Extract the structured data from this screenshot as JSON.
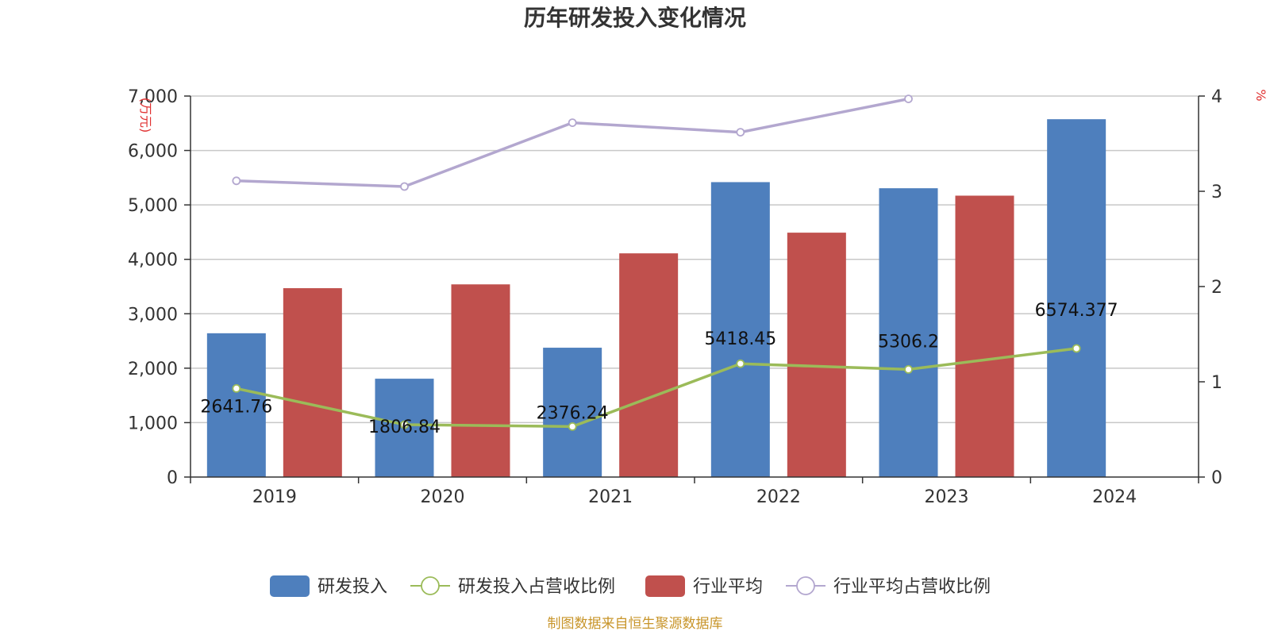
{
  "chart_data": {
    "type": "bar",
    "title": "历年研发投入变化情况",
    "categories": [
      "2019",
      "2020",
      "2021",
      "2022",
      "2023",
      "2024"
    ],
    "left_axis": {
      "unit": "(万元)",
      "ylim": [
        0,
        7000
      ],
      "ticks": [
        "0",
        "1,000",
        "2,000",
        "3,000",
        "4,000",
        "5,000",
        "6,000",
        "7,000"
      ]
    },
    "right_axis": {
      "unit": "%",
      "ylim": [
        0,
        4
      ],
      "ticks": [
        "0",
        "1",
        "2",
        "3",
        "4"
      ]
    },
    "series": [
      {
        "name": "研发投入",
        "type": "bar",
        "axis": "left",
        "color": "#4e7fbd",
        "values": [
          2641.76,
          1806.84,
          2376.24,
          5418.45,
          5306.2,
          6574.377
        ],
        "labels": [
          "2641.76",
          "1806.84",
          "2376.24",
          "5418.45",
          "5306.2",
          "6574.377"
        ]
      },
      {
        "name": "研发投入占营收比例",
        "type": "line",
        "axis": "right",
        "color": "#9bbb59",
        "values": [
          0.93,
          0.55,
          0.53,
          1.19,
          1.13,
          1.35
        ]
      },
      {
        "name": "行业平均",
        "type": "bar",
        "axis": "left",
        "color": "#c0504d",
        "values": [
          3470,
          3540,
          4110,
          4490,
          5170,
          null
        ]
      },
      {
        "name": "行业平均占营收比例",
        "type": "line",
        "axis": "right",
        "color": "#b3a7cf",
        "values": [
          3.11,
          3.05,
          3.72,
          3.62,
          3.97,
          null
        ]
      }
    ],
    "grid": true,
    "legend_position": "bottom"
  },
  "footer": {
    "source": "制图数据来自恒生聚源数据库"
  }
}
